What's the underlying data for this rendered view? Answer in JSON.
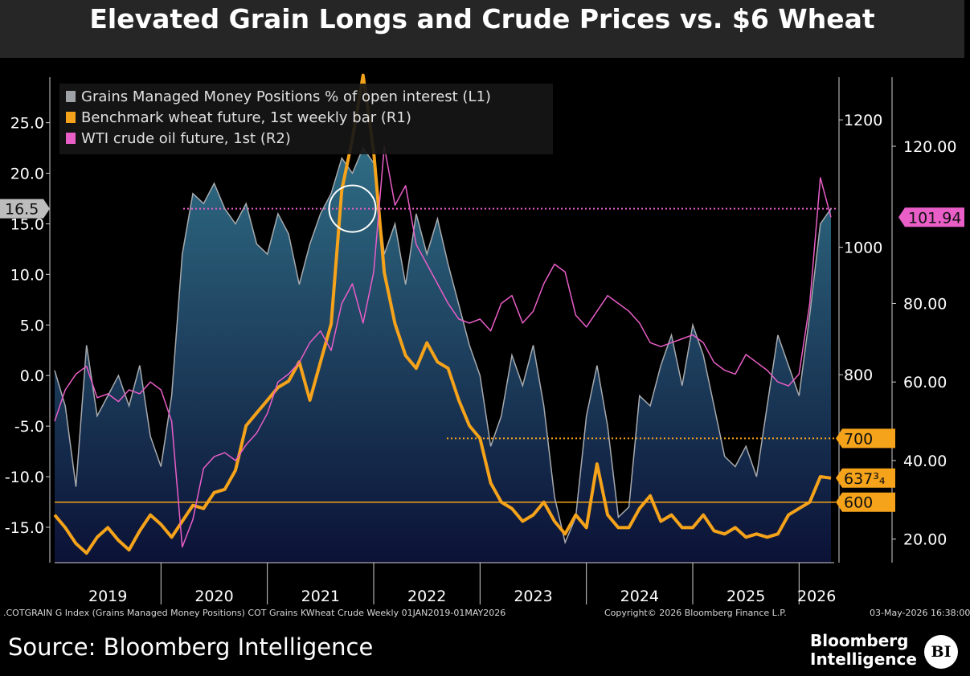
{
  "title": "Elevated Grain Longs and Crude Prices vs. $6 Wheat",
  "colors": {
    "grains": "#a7aaae",
    "wheat": "#f5a31a",
    "crude": "#e95ec7",
    "background": "#000000"
  },
  "legend": [
    {
      "label": "Grains Managed Money Positions % of open interest (L1)",
      "color": "#9fa3a8"
    },
    {
      "label": "Benchmark wheat future, 1st weekly bar (R1)",
      "color": "#f5a31a"
    },
    {
      "label": "WTI crude oil future, 1st (R2)",
      "color": "#e95ec7"
    }
  ],
  "footer": {
    "query": ".COTGRAIN G Index (Grains Managed Money Positions) COT Grains KWheat Crude Weekly 01JAN2019-01MAY2026",
    "copyright": "Copyright© 2026 Bloomberg Finance L.P.",
    "timestamp": "03-May-2026 16:38:00",
    "source": "Source: Bloomberg Intelligence",
    "brand_line1": "Bloomberg",
    "brand_line2": "Intelligence",
    "logo": "BI"
  },
  "chart_data": {
    "type": "line",
    "title": "Elevated Grain Longs and Crude Prices vs. $6 Wheat",
    "x_range": [
      2019.0,
      2026.33
    ],
    "year_labels": [
      "2019",
      "2020",
      "2021",
      "2022",
      "2023",
      "2024",
      "2025",
      "2026"
    ],
    "axes": {
      "L1": {
        "range": [
          -18.5,
          29.5
        ],
        "ticks": [
          25,
          20,
          15,
          10,
          5,
          0,
          -5,
          -10,
          -15
        ],
        "tick_labels": [
          "25.0",
          "20.0",
          "15.0",
          "10.0",
          "5.0",
          "0.0",
          "-5.0",
          "-10.0",
          "-15.0"
        ]
      },
      "R1": {
        "range": [
          505,
          1267
        ],
        "ticks": [
          1200,
          1000,
          800
        ],
        "tick_labels": [
          "1200",
          "1000",
          "800"
        ]
      },
      "R2": {
        "range": [
          14.0,
          137.6
        ],
        "ticks": [
          120,
          80,
          60,
          40,
          20
        ],
        "tick_labels": [
          "120.00",
          "80.00",
          "60.00",
          "40.00",
          "20.00"
        ]
      }
    },
    "reference_lines": [
      {
        "axis": "L1",
        "value": 16.5,
        "color": "#e95ec7",
        "style": "dotted"
      },
      {
        "axis": "R1",
        "value": 700,
        "color": "#f5a31a",
        "style": "dotted"
      },
      {
        "axis": "R1",
        "value": 600,
        "color": "#f5a31a",
        "style": "solid"
      }
    ],
    "value_tags": [
      {
        "axis": "L1",
        "value": 16.5,
        "label": "16.5",
        "side": "left"
      },
      {
        "axis": "R2",
        "value": 101.94,
        "label": "101.94",
        "side": "right-outer"
      },
      {
        "axis": "R1",
        "value": 700,
        "label": "700",
        "side": "right-inner"
      },
      {
        "axis": "R1",
        "value": 637.75,
        "label": "637³₄",
        "side": "right-inner"
      },
      {
        "axis": "R1",
        "value": 600,
        "label": "600",
        "side": "right-inner"
      }
    ],
    "annotation": {
      "type": "circle",
      "x": 2021.8,
      "axis": "L1",
      "y": 16.5
    },
    "series": [
      {
        "name": "Grains Managed Money Positions % of open interest (L1)",
        "axis": "L1",
        "style": "area",
        "x": [
          2019.0,
          2019.1,
          2019.2,
          2019.3,
          2019.4,
          2019.5,
          2019.6,
          2019.7,
          2019.8,
          2019.9,
          2020.0,
          2020.1,
          2020.2,
          2020.3,
          2020.4,
          2020.5,
          2020.6,
          2020.7,
          2020.8,
          2020.9,
          2021.0,
          2021.1,
          2021.2,
          2021.3,
          2021.4,
          2021.5,
          2021.6,
          2021.7,
          2021.8,
          2021.9,
          2022.0,
          2022.1,
          2022.2,
          2022.3,
          2022.4,
          2022.5,
          2022.6,
          2022.7,
          2022.8,
          2022.9,
          2023.0,
          2023.1,
          2023.2,
          2023.3,
          2023.4,
          2023.5,
          2023.6,
          2023.7,
          2023.8,
          2023.9,
          2024.0,
          2024.1,
          2024.2,
          2024.3,
          2024.4,
          2024.5,
          2024.6,
          2024.7,
          2024.8,
          2024.9,
          2025.0,
          2025.1,
          2025.2,
          2025.3,
          2025.4,
          2025.5,
          2025.6,
          2025.7,
          2025.8,
          2025.9,
          2026.0,
          2026.1,
          2026.2,
          2026.3
        ],
        "values": [
          0.5,
          -3.0,
          -11.0,
          3.0,
          -4.0,
          -2.0,
          0.0,
          -3.0,
          1.0,
          -6.0,
          -9.0,
          -2.0,
          12.0,
          18.0,
          17.0,
          19.0,
          16.5,
          15.0,
          17.0,
          13.0,
          12.0,
          16.0,
          14.0,
          9.0,
          13.0,
          16.0,
          18.0,
          21.5,
          20.0,
          22.5,
          21.0,
          12.0,
          15.0,
          9.0,
          16.0,
          12.0,
          15.5,
          11.0,
          7.0,
          3.0,
          0.0,
          -7.0,
          -4.0,
          2.0,
          -1.0,
          3.0,
          -3.0,
          -12.0,
          -16.5,
          -14.0,
          -4.0,
          1.0,
          -5.0,
          -14.0,
          -13.0,
          -2.0,
          -3.0,
          1.0,
          4.0,
          -1.0,
          5.0,
          2.0,
          -3.0,
          -8.0,
          -9.0,
          -7.0,
          -10.0,
          -3.0,
          4.0,
          1.0,
          -2.0,
          6.0,
          15.0,
          16.5
        ]
      },
      {
        "name": "Benchmark wheat future, 1st weekly bar (R1)",
        "axis": "R1",
        "style": "line",
        "x": [
          2019.0,
          2019.1,
          2019.2,
          2019.3,
          2019.4,
          2019.5,
          2019.6,
          2019.7,
          2019.8,
          2019.9,
          2020.0,
          2020.1,
          2020.2,
          2020.3,
          2020.4,
          2020.5,
          2020.6,
          2020.7,
          2020.8,
          2020.9,
          2021.0,
          2021.1,
          2021.2,
          2021.3,
          2021.4,
          2021.5,
          2021.6,
          2021.7,
          2021.8,
          2021.9,
          2022.0,
          2022.1,
          2022.2,
          2022.3,
          2022.4,
          2022.5,
          2022.6,
          2022.7,
          2022.8,
          2022.9,
          2023.0,
          2023.1,
          2023.2,
          2023.3,
          2023.4,
          2023.5,
          2023.6,
          2023.7,
          2023.8,
          2023.9,
          2024.0,
          2024.1,
          2024.2,
          2024.3,
          2024.4,
          2024.5,
          2024.6,
          2024.7,
          2024.8,
          2024.9,
          2025.0,
          2025.1,
          2025.2,
          2025.3,
          2025.4,
          2025.5,
          2025.6,
          2025.7,
          2025.8,
          2025.9,
          2026.0,
          2026.1,
          2026.2,
          2026.3
        ],
        "values": [
          580,
          560,
          535,
          520,
          545,
          560,
          540,
          525,
          555,
          580,
          565,
          545,
          570,
          595,
          590,
          615,
          620,
          650,
          720,
          740,
          760,
          780,
          790,
          820,
          760,
          820,
          880,
          1090,
          1170,
          1270,
          1150,
          960,
          880,
          830,
          810,
          850,
          820,
          810,
          760,
          720,
          700,
          630,
          600,
          590,
          570,
          580,
          600,
          570,
          550,
          580,
          560,
          660,
          580,
          560,
          560,
          590,
          610,
          570,
          580,
          560,
          560,
          580,
          555,
          550,
          560,
          545,
          550,
          545,
          550,
          580,
          590,
          600,
          640,
          637.75
        ]
      },
      {
        "name": "WTI crude oil future, 1st (R2)",
        "axis": "R2",
        "style": "line",
        "x": [
          2019.0,
          2019.1,
          2019.2,
          2019.3,
          2019.4,
          2019.5,
          2019.6,
          2019.7,
          2019.8,
          2019.9,
          2020.0,
          2020.1,
          2020.2,
          2020.3,
          2020.4,
          2020.5,
          2020.6,
          2020.7,
          2020.8,
          2020.9,
          2021.0,
          2021.1,
          2021.2,
          2021.3,
          2021.4,
          2021.5,
          2021.6,
          2021.7,
          2021.8,
          2021.9,
          2022.0,
          2022.1,
          2022.2,
          2022.3,
          2022.4,
          2022.5,
          2022.6,
          2022.7,
          2022.8,
          2022.9,
          2023.0,
          2023.1,
          2023.2,
          2023.3,
          2023.4,
          2023.5,
          2023.6,
          2023.7,
          2023.8,
          2023.9,
          2024.0,
          2024.1,
          2024.2,
          2024.3,
          2024.4,
          2024.5,
          2024.6,
          2024.7,
          2024.8,
          2024.9,
          2025.0,
          2025.1,
          2025.2,
          2025.3,
          2025.4,
          2025.5,
          2025.6,
          2025.7,
          2025.8,
          2025.9,
          2026.0,
          2026.1,
          2026.2,
          2026.3
        ],
        "values": [
          50,
          58,
          62,
          64,
          56,
          57,
          55,
          58,
          57,
          60,
          58,
          50,
          18,
          25,
          38,
          41,
          42,
          40,
          44,
          47,
          52,
          60,
          62,
          65,
          70,
          73,
          68,
          80,
          85,
          75,
          88,
          120,
          105,
          110,
          95,
          90,
          85,
          80,
          76,
          75,
          76,
          73,
          80,
          82,
          75,
          78,
          85,
          90,
          88,
          77,
          74,
          78,
          82,
          80,
          78,
          75,
          70,
          69,
          70,
          71,
          72,
          70,
          65,
          63,
          62,
          67,
          65,
          63,
          60,
          59,
          62,
          80,
          112,
          101.94
        ]
      }
    ]
  }
}
